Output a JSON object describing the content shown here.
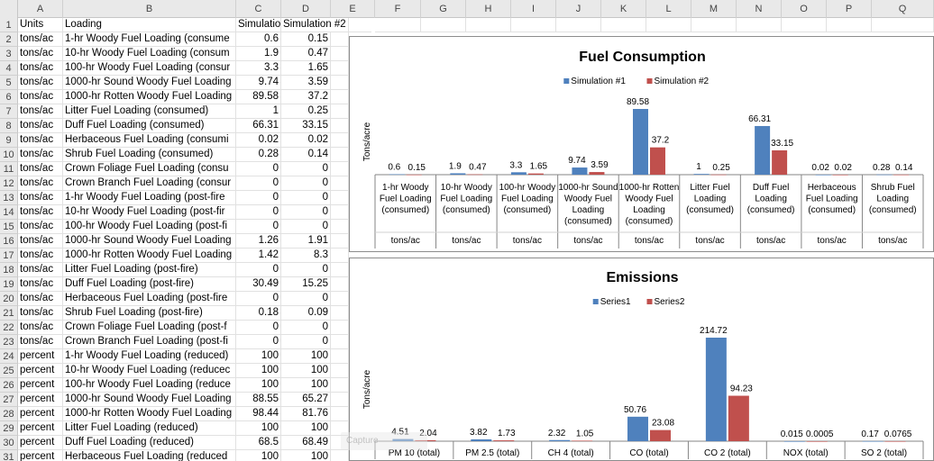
{
  "sheet": {
    "columns": [
      "A",
      "B",
      "C",
      "D",
      "E",
      "F",
      "G",
      "H",
      "I",
      "J",
      "K",
      "L",
      "M",
      "N",
      "O",
      "P",
      "Q"
    ],
    "rows": [
      [
        "1",
        "Units",
        "Loading",
        "Simulatio",
        "Simulation #2"
      ],
      [
        "2",
        "tons/ac",
        "1-hr Woody Fuel Loading (consume",
        "0.6",
        "0.15"
      ],
      [
        "3",
        "tons/ac",
        "10-hr Woody Fuel Loading (consum",
        "1.9",
        "0.47"
      ],
      [
        "4",
        "tons/ac",
        "100-hr Woody Fuel Loading (consur",
        "3.3",
        "1.65"
      ],
      [
        "5",
        "tons/ac",
        "1000-hr Sound Woody Fuel Loading",
        "9.74",
        "3.59"
      ],
      [
        "6",
        "tons/ac",
        "1000-hr Rotten Woody Fuel Loading",
        "89.58",
        "37.2"
      ],
      [
        "7",
        "tons/ac",
        "Litter Fuel Loading (consumed)",
        "1",
        "0.25"
      ],
      [
        "8",
        "tons/ac",
        "Duff Fuel Loading (consumed)",
        "66.31",
        "33.15"
      ],
      [
        "9",
        "tons/ac",
        "Herbaceous Fuel Loading (consumi",
        "0.02",
        "0.02"
      ],
      [
        "10",
        "tons/ac",
        "Shrub Fuel Loading (consumed)",
        "0.28",
        "0.14"
      ],
      [
        "11",
        "tons/ac",
        "Crown Foliage Fuel Loading (consu",
        "0",
        "0"
      ],
      [
        "12",
        "tons/ac",
        "Crown Branch Fuel Loading (consur",
        "0",
        "0"
      ],
      [
        "13",
        "tons/ac",
        "1-hr Woody Fuel Loading (post-fire",
        "0",
        "0"
      ],
      [
        "14",
        "tons/ac",
        "10-hr Woody Fuel Loading (post-fir",
        "0",
        "0"
      ],
      [
        "15",
        "tons/ac",
        "100-hr Woody Fuel Loading (post-fi",
        "0",
        "0"
      ],
      [
        "16",
        "tons/ac",
        "1000-hr Sound Woody Fuel Loading",
        "1.26",
        "1.91"
      ],
      [
        "17",
        "tons/ac",
        "1000-hr Rotten Woody Fuel Loading",
        "1.42",
        "8.3"
      ],
      [
        "18",
        "tons/ac",
        "Litter Fuel Loading (post-fire)",
        "0",
        "0"
      ],
      [
        "19",
        "tons/ac",
        "Duff Fuel Loading (post-fire)",
        "30.49",
        "15.25"
      ],
      [
        "20",
        "tons/ac",
        "Herbaceous Fuel Loading (post-fire",
        "0",
        "0"
      ],
      [
        "21",
        "tons/ac",
        "Shrub Fuel Loading (post-fire)",
        "0.18",
        "0.09"
      ],
      [
        "22",
        "tons/ac",
        "Crown Foliage Fuel Loading (post-f",
        "0",
        "0"
      ],
      [
        "23",
        "tons/ac",
        "Crown Branch Fuel Loading (post-fi",
        "0",
        "0"
      ],
      [
        "24",
        "percent",
        "1-hr Woody Fuel Loading (reduced)",
        "100",
        "100"
      ],
      [
        "25",
        "percent",
        "10-hr Woody Fuel Loading (reducec",
        "100",
        "100"
      ],
      [
        "26",
        "percent",
        "100-hr Woody Fuel Loading (reduce",
        "100",
        "100"
      ],
      [
        "27",
        "percent",
        "1000-hr Sound Woody Fuel Loading",
        "88.55",
        "65.27"
      ],
      [
        "28",
        "percent",
        "1000-hr Rotten Woody Fuel Loading",
        "98.44",
        "81.76"
      ],
      [
        "29",
        "percent",
        "Litter Fuel Loading (reduced)",
        "100",
        "100"
      ],
      [
        "30",
        "percent",
        "Duff Fuel Loading (reduced)",
        "68.5",
        "68.49"
      ],
      [
        "31",
        "percent",
        "Herbaceous Fuel Loading (reduced",
        "100",
        "100"
      ]
    ]
  },
  "chart_data": [
    {
      "type": "bar",
      "title": "Fuel Consumption",
      "ylabel": "Tons/acre",
      "legend_position": "top",
      "categories": [
        [
          "1-hr Woody",
          "Fuel Loading",
          "(consumed)"
        ],
        [
          "10-hr Woody",
          "Fuel Loading",
          "(consumed)"
        ],
        [
          "100-hr Woody",
          "Fuel Loading",
          "(consumed)"
        ],
        [
          "1000-hr Sound",
          "Woody Fuel",
          "Loading",
          "(consumed)"
        ],
        [
          "1000-hr Rotten",
          "Woody Fuel",
          "Loading",
          "(consumed)"
        ],
        [
          "Litter Fuel",
          "Loading",
          "(consumed)"
        ],
        [
          "Duff Fuel",
          "Loading",
          "(consumed)"
        ],
        [
          "Herbaceous",
          "Fuel Loading",
          "(consumed)"
        ],
        [
          "Shrub Fuel",
          "Loading",
          "(consumed)"
        ]
      ],
      "sub_categories": [
        "tons/ac",
        "tons/ac",
        "tons/ac",
        "tons/ac",
        "tons/ac",
        "tons/ac",
        "tons/ac",
        "tons/ac",
        "tons/ac"
      ],
      "series": [
        {
          "name": "Simulation #1",
          "color": "#4f81bd",
          "values": [
            0.6,
            1.9,
            3.3,
            9.74,
            89.58,
            1,
            66.31,
            0.02,
            0.28
          ],
          "labels": [
            "0.6",
            "1.9",
            "3.3",
            "9.74",
            "89.58",
            "1",
            "66.31",
            "0.02",
            "0.28"
          ]
        },
        {
          "name": "Simulation #2",
          "color": "#c0504d",
          "values": [
            0.15,
            0.47,
            1.65,
            3.59,
            37.2,
            0.25,
            33.15,
            0.02,
            0.14
          ],
          "labels": [
            "0.15",
            "0.47",
            "1.65",
            "3.59",
            "37.2",
            "0.25",
            "33.15",
            "0.02",
            "0.14"
          ]
        }
      ],
      "ylim": [
        0,
        89.58
      ],
      "grid": false
    },
    {
      "type": "bar",
      "title": "Emissions",
      "ylabel": "Tons/acre",
      "legend_position": "top",
      "categories": [
        [
          "PM 10 (total)"
        ],
        [
          "PM 2.5 (total)"
        ],
        [
          "CH 4 (total)"
        ],
        [
          "CO (total)"
        ],
        [
          "CO 2 (total)"
        ],
        [
          "NOX (total)"
        ],
        [
          "SO 2 (total)"
        ]
      ],
      "sub_categories": [],
      "series": [
        {
          "name": "Series1",
          "color": "#4f81bd",
          "values": [
            4.51,
            3.82,
            2.32,
            50.76,
            214.72,
            0.015,
            0.17
          ],
          "labels": [
            "4.51",
            "3.82",
            "2.32",
            "50.76",
            "214.72",
            "0.015",
            "0.17"
          ]
        },
        {
          "name": "Series2",
          "color": "#c0504d",
          "values": [
            2.04,
            1.73,
            1.05,
            23.08,
            94.23,
            0.0005,
            0.0765
          ],
          "labels": [
            "2.04",
            "1.73",
            "1.05",
            "23.08",
            "94.23",
            "0.0005",
            "0.0765"
          ]
        }
      ],
      "ylim": [
        0,
        214.72
      ],
      "grid": false
    }
  ],
  "overlay": {
    "watermark_text": "Capture"
  }
}
